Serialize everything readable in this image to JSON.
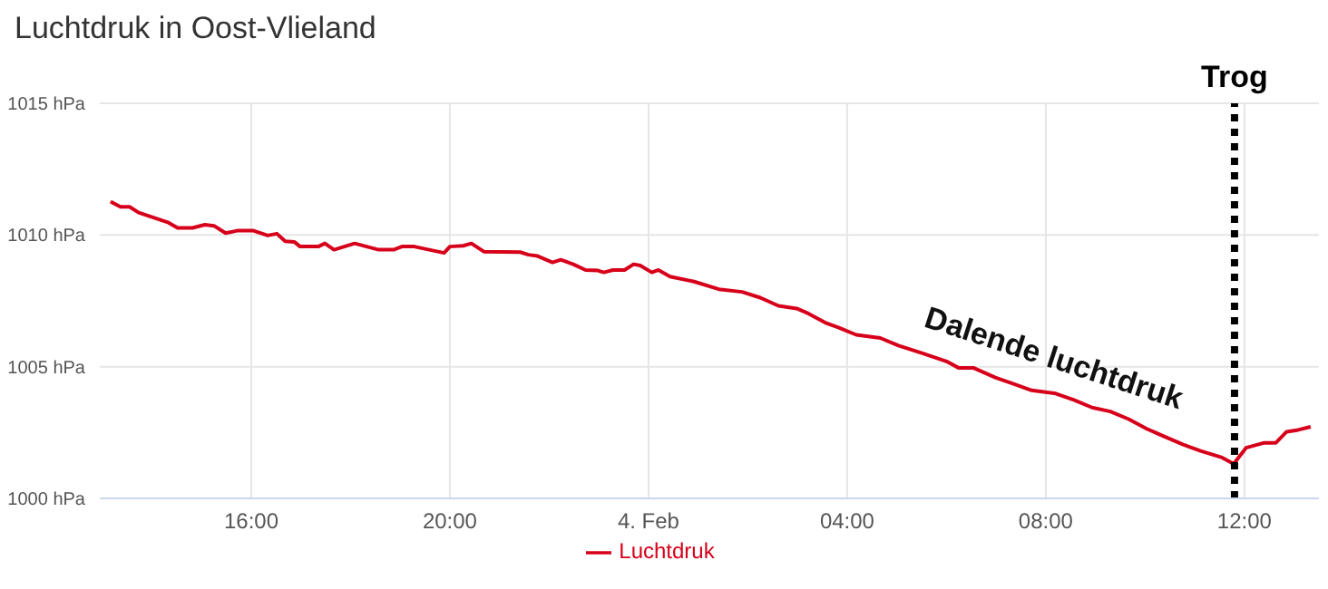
{
  "chart_data": {
    "type": "line",
    "title": "Luchtdruk in Oost-Vlieland",
    "x": [
      "--02-03T13:10",
      "--02-03T13:22",
      "--02-03T13:33",
      "--02-03T13:44",
      "--02-03T14:20",
      "--02-03T14:31",
      "--02-03T14:49",
      "--02-03T15:04",
      "--02-03T15:15",
      "--02-03T15:29",
      "--02-03T15:44",
      "--02-03T16:02",
      "--02-03T16:20",
      "--02-03T16:31",
      "--02-03T16:41",
      "--02-03T16:52",
      "--02-03T16:59",
      "--02-03T17:21",
      "--02-03T17:29",
      "--02-03T17:40",
      "--02-03T18:05",
      "--02-03T18:34",
      "--02-03T18:52",
      "--02-03T19:02",
      "--02-03T19:17",
      "--02-03T19:53",
      "--02-03T20:00",
      "--02-03T20:16",
      "--02-03T20:26",
      "--02-03T20:41",
      "--02-03T21:25",
      "--02-03T21:35",
      "--02-03T21:46",
      "--02-03T22:04",
      "--02-03T22:14",
      "--02-03T22:29",
      "--02-03T22:44",
      "--02-03T22:59",
      "--02-03T23:06",
      "--02-03T23:17",
      "--02-03T23:31",
      "--02-03T23:42",
      "--02-03T23:50",
      "--02-04T00:04",
      "--02-04T00:12",
      "--02-04T00:26",
      "--02-04T00:55",
      "--02-04T01:25",
      "--02-04T01:53",
      "--02-04T02:15",
      "--02-04T02:37",
      "--02-04T02:59",
      "--02-04T03:13",
      "--02-04T03:35",
      "--02-04T03:50",
      "--02-04T04:11",
      "--02-04T04:40",
      "--02-04T05:02",
      "--02-04T05:31",
      "--02-04T06:01",
      "--02-04T06:15",
      "--02-04T06:33",
      "--02-04T06:59",
      "--02-04T07:21",
      "--02-04T07:43",
      "--02-04T08:12",
      "--02-04T08:34",
      "--02-04T08:56",
      "--02-04T09:18",
      "--02-04T09:40",
      "--02-04T10:02",
      "--02-04T10:23",
      "--02-04T10:46",
      "--02-04T11:07",
      "--02-04T11:33",
      "--02-04T11:47",
      "--02-04T12:02",
      "--02-04T12:24",
      "--02-04T12:38",
      "--02-04T12:51",
      "--02-04T13:05",
      "--02-04T13:20"
    ],
    "series": [
      {
        "name": "Luchtdruk",
        "color": "#d7001a",
        "values": [
          1011.27,
          1011.07,
          1011.07,
          1010.85,
          1010.47,
          1010.27,
          1010.27,
          1010.39,
          1010.35,
          1010.07,
          1010.17,
          1010.17,
          1009.98,
          1010.05,
          1009.76,
          1009.74,
          1009.56,
          1009.56,
          1009.68,
          1009.44,
          1009.68,
          1009.44,
          1009.44,
          1009.56,
          1009.56,
          1009.32,
          1009.56,
          1009.59,
          1009.68,
          1009.37,
          1009.35,
          1009.25,
          1009.2,
          1008.96,
          1009.06,
          1008.89,
          1008.67,
          1008.65,
          1008.58,
          1008.67,
          1008.67,
          1008.89,
          1008.84,
          1008.58,
          1008.67,
          1008.42,
          1008.23,
          1007.94,
          1007.84,
          1007.62,
          1007.31,
          1007.21,
          1007.02,
          1006.65,
          1006.48,
          1006.21,
          1006.09,
          1005.8,
          1005.51,
          1005.19,
          1004.95,
          1004.95,
          1004.59,
          1004.35,
          1004.1,
          1003.98,
          1003.74,
          1003.45,
          1003.3,
          1003.01,
          1002.64,
          1002.35,
          1002.04,
          1001.8,
          1001.55,
          1001.31,
          1001.92,
          1002.11,
          1002.11,
          1002.53,
          1002.6,
          1002.72
        ]
      }
    ],
    "xlim": [
      "--02-03T12:57",
      "--02-04T13:30"
    ],
    "xticks": [
      {
        "value": "--02-03T16:00",
        "label": "16:00"
      },
      {
        "value": "--02-03T20:00",
        "label": "20:00"
      },
      {
        "value": "--02-04T00:00",
        "label": "4. Feb"
      },
      {
        "value": "--02-04T04:00",
        "label": "04:00"
      },
      {
        "value": "--02-04T08:00",
        "label": "08:00"
      },
      {
        "value": "--02-04T12:00",
        "label": "12:00"
      }
    ],
    "ylim": [
      1000,
      1015
    ],
    "yticks": [
      {
        "value": 1000,
        "label": "1000 hPa"
      },
      {
        "value": 1005,
        "label": "1005 hPa"
      },
      {
        "value": 1010,
        "label": "1010 hPa"
      },
      {
        "value": 1015,
        "label": "1015 hPa"
      }
    ],
    "ref_lines": [
      {
        "axis": "x",
        "value": "--02-04T11:48",
        "label": "Trog",
        "color": "#000000",
        "line_style": "dotted"
      }
    ],
    "annotations": [
      {
        "text": "Dalende luchtdruk",
        "x": "--02-04T08:06",
        "y": 1004
      }
    ],
    "grid": true,
    "legend": "bottom",
    "marker": "none",
    "line_style": "solid"
  }
}
